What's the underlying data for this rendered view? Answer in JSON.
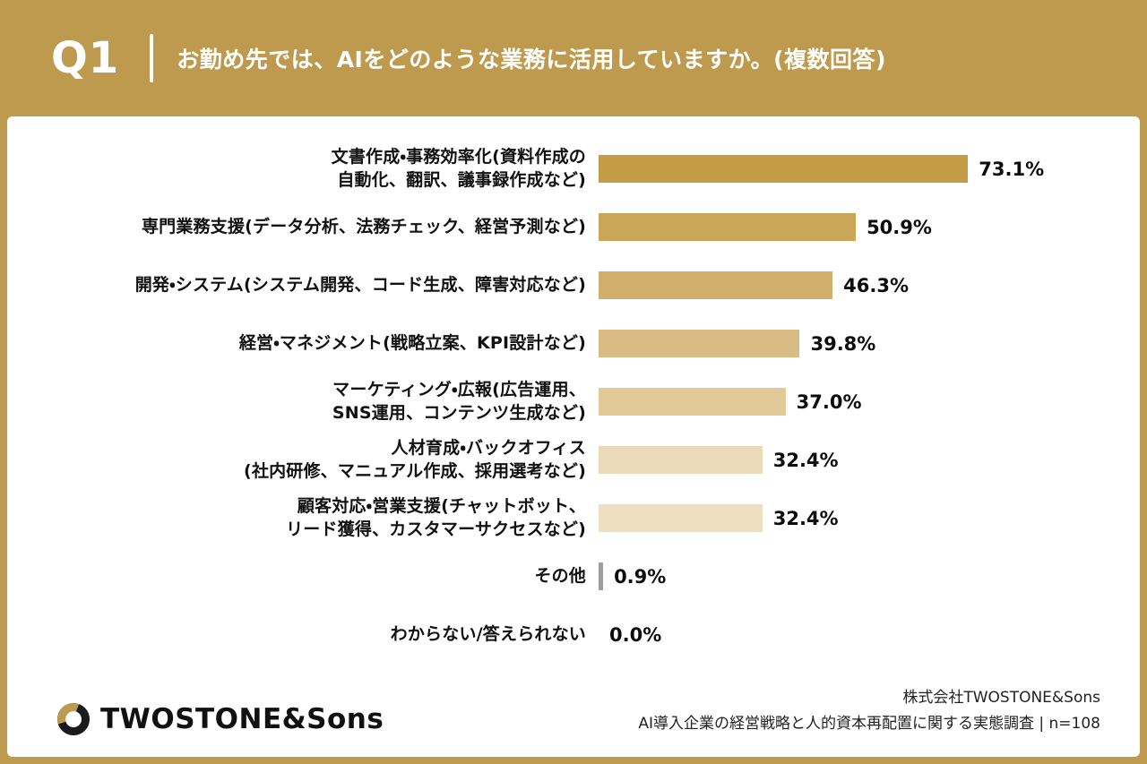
{
  "header": {
    "q_label": "Q1",
    "question": "お勤め先では、AIをどのような業務に活用していますか。(複数回答)"
  },
  "chart_data": {
    "type": "bar",
    "orientation": "horizontal",
    "xlim": [
      0,
      100
    ],
    "unit": "%",
    "categories": [
      [
        "文書作成・事務効率化(資料作成の",
        "自動化、翻訳、議事録作成など)"
      ],
      [
        "専門業務支援(データ分析、法務チェック、経営予測など)"
      ],
      [
        "開発・システム(システム開発、コード生成、障害対応など)"
      ],
      [
        "経営・マネジメント(戦略立案、KPI設計など)"
      ],
      [
        "マーケティング・広報(広告運用、",
        "SNS運用、コンテンツ生成など)"
      ],
      [
        "人材育成・バックオフィス",
        "(社内研修、マニュアル作成、採用選考など)"
      ],
      [
        "顧客対応・営業支援(チャットボット、",
        "リード獲得、カスタマーサクセスなど)"
      ],
      [
        "その他"
      ],
      [
        "わからない/答えられない"
      ]
    ],
    "values": [
      73.1,
      50.9,
      46.3,
      39.8,
      37.0,
      32.4,
      32.4,
      0.9,
      0.0
    ],
    "value_labels": [
      "73.1%",
      "50.9%",
      "46.3%",
      "39.8%",
      "37.0%",
      "32.4%",
      "32.4%",
      "0.9%",
      "0.0%"
    ],
    "bar_colors": [
      "#C49C46",
      "#CAA659",
      "#D1AF6B",
      "#D9BC84",
      "#E1C998",
      "#EBDAB7",
      "#EEDFC0",
      "#9E9E9E",
      "#EEDFC0"
    ],
    "legend": null,
    "grid": false
  },
  "footer": {
    "logo_text": "TWOSTONE&Sons",
    "company_line": "株式会社TWOSTONE&Sons",
    "survey_line": "AI導入企業の経営戦略と人的資本再配置に関する実態調査 | n=108"
  },
  "colors": {
    "background": "#BE9A4F",
    "card": "#FFFFFF",
    "header_text": "#FFFFFF",
    "text_dark": "#111111",
    "logo_dark": "#1B1B1B",
    "logo_gold": "#BE9A4F"
  }
}
